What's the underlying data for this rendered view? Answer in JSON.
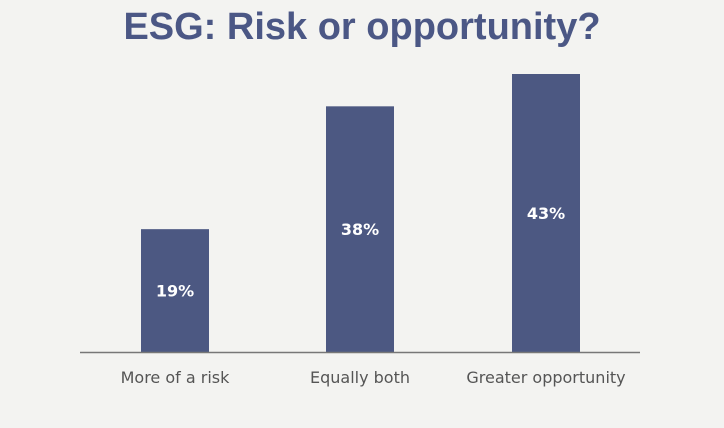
{
  "chart_data": {
    "type": "bar",
    "title": "ESG: Risk or opportunity?",
    "categories": [
      "More of a risk",
      "Equally both",
      "Greater opportunity"
    ],
    "values": [
      19,
      38,
      43
    ],
    "data_labels": [
      "19%",
      "38%",
      "43%"
    ],
    "ylim": [
      0,
      43
    ],
    "grid": false,
    "colors": {
      "bar": "#4c5882",
      "axis": "#777777",
      "label": "#555555",
      "title": "#4b5785",
      "data_label": "#ffffff"
    }
  }
}
